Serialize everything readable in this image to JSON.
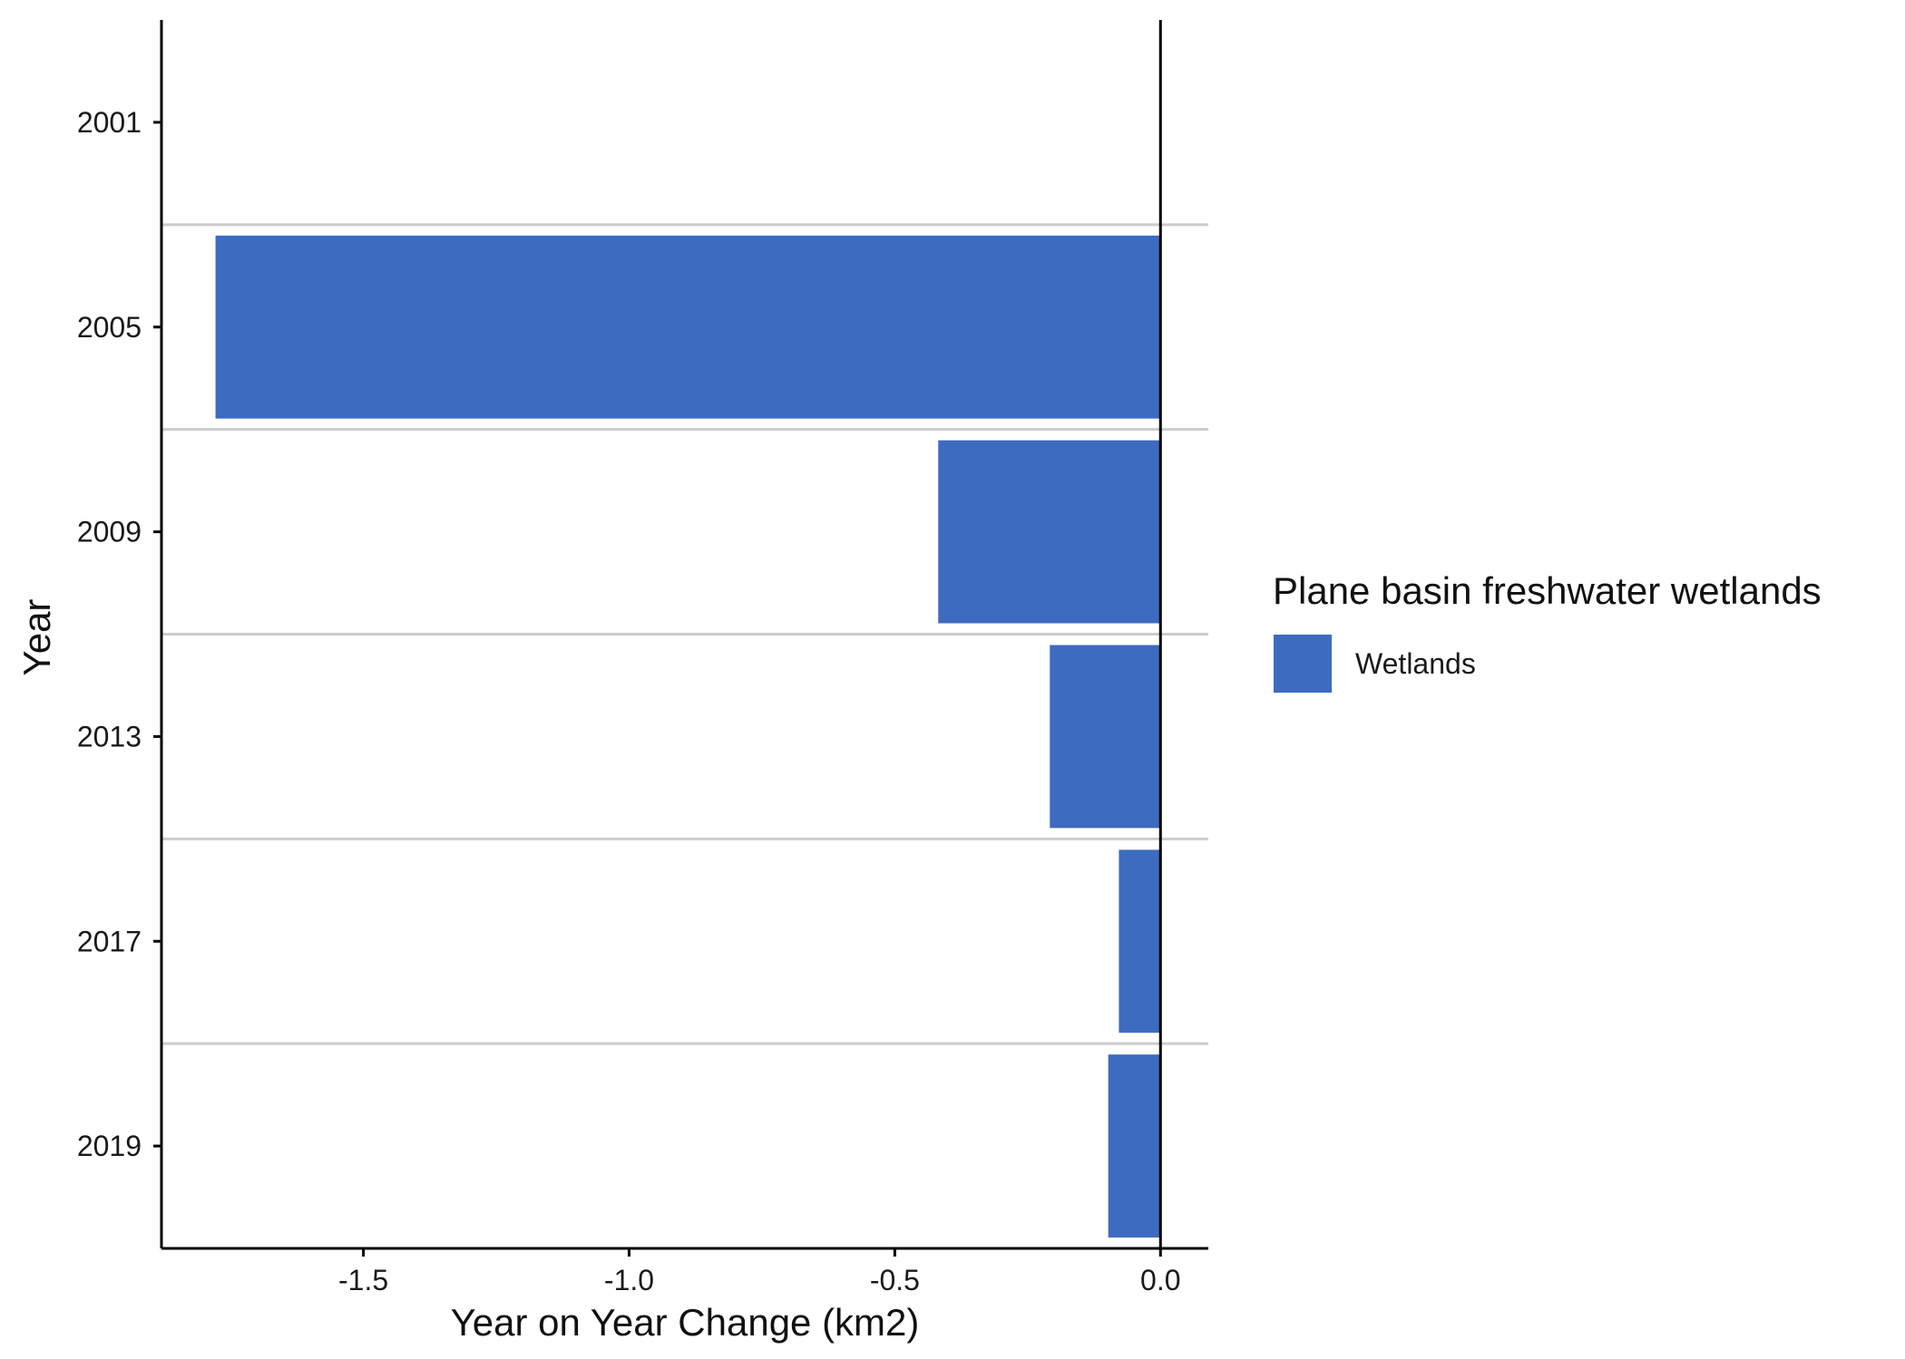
{
  "chart_data": {
    "type": "bar",
    "orientation": "horizontal",
    "xlabel": "Year on Year Change (km2)",
    "ylabel": "Year",
    "categories": [
      "2001",
      "2005",
      "2009",
      "2013",
      "2017",
      "2019"
    ],
    "series": [
      {
        "name": "Wetlands",
        "values": [
          0,
          -1.78,
          -0.42,
          -0.21,
          -0.08,
          -0.1
        ]
      }
    ],
    "xlim": [
      -1.88,
      0.09
    ],
    "xticks": [
      -1.5,
      -1.0,
      -0.5,
      0.0
    ],
    "xtick_labels": [
      "-1.5",
      "-1.0",
      "-0.5",
      "0.0"
    ],
    "legend": {
      "title": "Plane basin freshwater wetlands",
      "placement": "right",
      "entries": [
        {
          "label": "Wetlands",
          "color": "#3D6BBF"
        }
      ]
    },
    "colors": {
      "bar": "#3D6BBF",
      "separator": "#CCCCCC",
      "axis": "#000000"
    }
  }
}
